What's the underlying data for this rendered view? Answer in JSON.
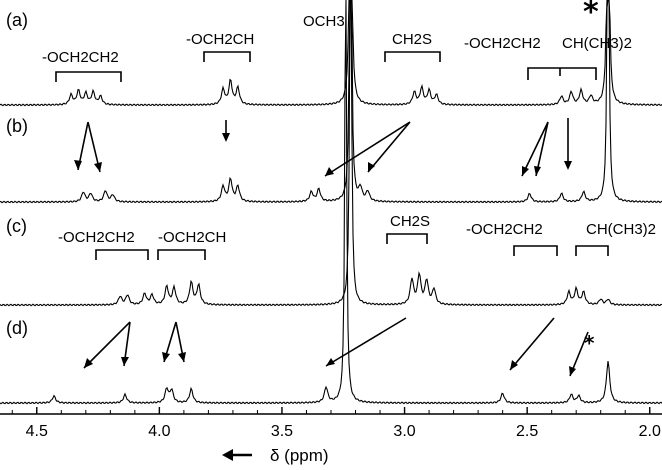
{
  "chart_data": {
    "type": "line",
    "x_axis": {
      "label": "δ (ppm)",
      "direction": "decreasing",
      "range": [
        4.65,
        1.95
      ],
      "ticks": [
        "4.5",
        "4.0",
        "3.5",
        "3.0",
        "2.5",
        "2.0"
      ],
      "tick_values": [
        4.5,
        4.0,
        3.5,
        3.0,
        2.5,
        2.0
      ]
    },
    "grid": false,
    "series": [
      {
        "name": "(a)",
        "peaks": [
          {
            "ppm": 4.36,
            "height": 0.14
          },
          {
            "ppm": 4.33,
            "height": 0.2
          },
          {
            "ppm": 4.3,
            "height": 0.16
          },
          {
            "ppm": 4.27,
            "height": 0.18
          },
          {
            "ppm": 4.24,
            "height": 0.12
          },
          {
            "ppm": 3.74,
            "height": 0.22
          },
          {
            "ppm": 3.71,
            "height": 0.34
          },
          {
            "ppm": 3.68,
            "height": 0.24
          },
          {
            "ppm": 3.22,
            "height": 7.0
          },
          {
            "ppm": 2.96,
            "height": 0.18
          },
          {
            "ppm": 2.93,
            "height": 0.24
          },
          {
            "ppm": 2.9,
            "height": 0.2
          },
          {
            "ppm": 2.87,
            "height": 0.14
          },
          {
            "ppm": 2.36,
            "height": 0.12
          },
          {
            "ppm": 2.32,
            "height": 0.18
          },
          {
            "ppm": 2.28,
            "height": 0.2
          },
          {
            "ppm": 2.24,
            "height": 0.12
          },
          {
            "ppm": 2.17,
            "height": 6.0
          }
        ]
      },
      {
        "name": "(b)",
        "peaks": [
          {
            "ppm": 4.31,
            "height": 0.14
          },
          {
            "ppm": 4.28,
            "height": 0.12
          },
          {
            "ppm": 4.22,
            "height": 0.16
          },
          {
            "ppm": 4.19,
            "height": 0.1
          },
          {
            "ppm": 3.74,
            "height": 0.22
          },
          {
            "ppm": 3.71,
            "height": 0.32
          },
          {
            "ppm": 3.68,
            "height": 0.22
          },
          {
            "ppm": 3.38,
            "height": 0.14
          },
          {
            "ppm": 3.35,
            "height": 0.18
          },
          {
            "ppm": 3.22,
            "height": 7.0
          },
          {
            "ppm": 3.18,
            "height": 0.18
          },
          {
            "ppm": 3.15,
            "height": 0.14
          },
          {
            "ppm": 2.49,
            "height": 0.12
          },
          {
            "ppm": 2.36,
            "height": 0.12
          },
          {
            "ppm": 2.27,
            "height": 0.14
          },
          {
            "ppm": 2.17,
            "height": 6.0
          }
        ]
      },
      {
        "name": "(c)",
        "peaks": [
          {
            "ppm": 4.16,
            "height": 0.12
          },
          {
            "ppm": 4.13,
            "height": 0.14
          },
          {
            "ppm": 4.06,
            "height": 0.16
          },
          {
            "ppm": 4.03,
            "height": 0.14
          },
          {
            "ppm": 3.97,
            "height": 0.26
          },
          {
            "ppm": 3.94,
            "height": 0.24
          },
          {
            "ppm": 3.87,
            "height": 0.32
          },
          {
            "ppm": 3.84,
            "height": 0.28
          },
          {
            "ppm": 3.22,
            "height": 7.0
          },
          {
            "ppm": 2.97,
            "height": 0.36
          },
          {
            "ppm": 2.94,
            "height": 0.42
          },
          {
            "ppm": 2.91,
            "height": 0.34
          },
          {
            "ppm": 2.88,
            "height": 0.22
          },
          {
            "ppm": 2.33,
            "height": 0.18
          },
          {
            "ppm": 2.3,
            "height": 0.22
          },
          {
            "ppm": 2.27,
            "height": 0.18
          },
          {
            "ppm": 2.2,
            "height": 0.08
          },
          {
            "ppm": 2.17,
            "height": 0.08
          }
        ]
      },
      {
        "name": "(d)",
        "peaks": [
          {
            "ppm": 4.43,
            "height": 0.1
          },
          {
            "ppm": 4.14,
            "height": 0.12
          },
          {
            "ppm": 3.97,
            "height": 0.2
          },
          {
            "ppm": 3.95,
            "height": 0.18
          },
          {
            "ppm": 3.87,
            "height": 0.2
          },
          {
            "ppm": 3.32,
            "height": 0.22
          },
          {
            "ppm": 3.24,
            "height": 7.0
          },
          {
            "ppm": 2.6,
            "height": 0.14
          },
          {
            "ppm": 2.32,
            "height": 0.12
          },
          {
            "ppm": 2.29,
            "height": 0.1
          },
          {
            "ppm": 2.17,
            "height": 0.6
          }
        ]
      }
    ],
    "annotations": {
      "a": [
        "-OCH2CH2",
        "-OCH2CH",
        "OCH3",
        "CH2S",
        "-OCH2CH2",
        "CH(CH3)2",
        "*"
      ],
      "c": [
        "-OCH2CH2",
        "-OCH2CH",
        "CH2S",
        "-OCH2CH2",
        "CH(CH3)2"
      ],
      "d": [
        "*"
      ]
    }
  }
}
